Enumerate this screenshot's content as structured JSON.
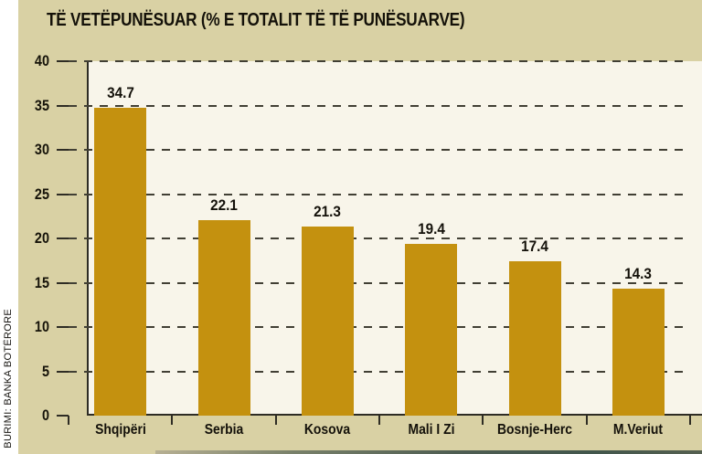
{
  "source_label": "BURIMI: BANKA BOTËRORE",
  "chart_data": {
    "type": "bar",
    "title": "TË VETËPUNËSUAR (% E TOTALIT TË TË PUNËSUARVE)",
    "categories": [
      "Shqipëri",
      "Serbia",
      "Kosova",
      "Mali I Zi",
      "Bosnje-Herc",
      "M.Veriut"
    ],
    "values": [
      34.7,
      22.1,
      21.3,
      19.4,
      17.4,
      14.3
    ],
    "value_labels": [
      "34.7",
      "22.1",
      "21.3",
      "19.4",
      "17.4",
      "14.3"
    ],
    "xlabel": "",
    "ylabel": "",
    "ylim": [
      0,
      40
    ],
    "yticks": [
      0,
      5,
      10,
      15,
      20,
      25,
      30,
      35,
      40
    ],
    "grid": "horizontal-dashed",
    "legend": "none",
    "colors": {
      "bar": "#c4910f",
      "plot_bg": "#f8f5ea",
      "card_bg": "#d9d1a4",
      "page_margin": "#ffffff",
      "text": "#14110a",
      "grid": "#413f34",
      "accent_strip": "#4e5d52"
    }
  }
}
